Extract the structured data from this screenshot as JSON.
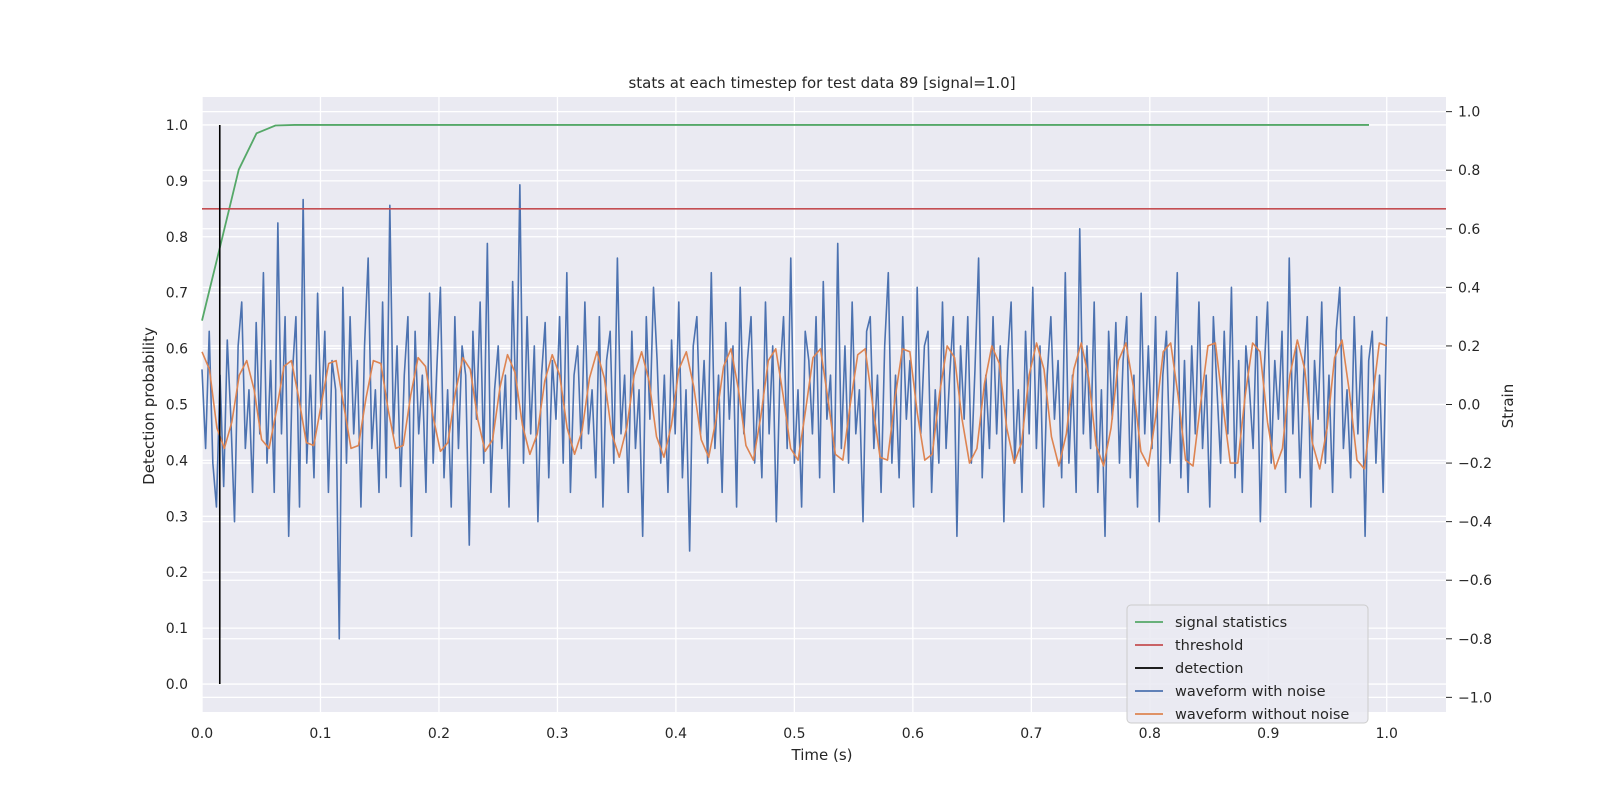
{
  "chart_data": {
    "type": "line",
    "title": "stats at each timestep for test data 89 [signal=1.0]",
    "xlabel": "Time (s)",
    "ylabel": "Detection probability",
    "y2label": "Strain",
    "xlim": [
      0.0,
      1.05
    ],
    "ylim": [
      -0.05,
      1.05
    ],
    "y2lim": [
      -1.05,
      1.05
    ],
    "xticks": [
      "0.0",
      "0.1",
      "0.2",
      "0.3",
      "0.4",
      "0.5",
      "0.6",
      "0.7",
      "0.8",
      "0.9",
      "1.0"
    ],
    "yticks": [
      "0.0",
      "0.1",
      "0.2",
      "0.3",
      "0.4",
      "0.5",
      "0.6",
      "0.7",
      "0.8",
      "0.9",
      "1.0"
    ],
    "y2ticks": [
      "−1.0",
      "−0.8",
      "−0.6",
      "−0.4",
      "−0.2",
      "0.0",
      "0.2",
      "0.4",
      "0.6",
      "0.8",
      "1.0"
    ],
    "grid": true,
    "legend_position": "lower right",
    "colors": {
      "signal_statistics": "#55a868",
      "threshold": "#c44e52",
      "detection": "#000000",
      "waveform_with_noise": "#4c72b0",
      "waveform_without_noise": "#dd8452",
      "background": "#eaeaf2",
      "grid": "#ffffff"
    },
    "legend": [
      "signal statistics",
      "threshold",
      "detection",
      "waveform with noise",
      "waveform without noise"
    ],
    "series": [
      {
        "name": "signal statistics",
        "axis": "left",
        "x": [
          0.0,
          0.015,
          0.031,
          0.046,
          0.062,
          0.078,
          0.2,
          0.4,
          0.6,
          0.8,
          0.985
        ],
        "values": [
          0.65,
          0.78,
          0.92,
          0.985,
          0.999,
          1.0,
          1.0,
          1.0,
          1.0,
          1.0,
          1.0
        ]
      },
      {
        "name": "threshold",
        "axis": "left",
        "x": [
          0.0,
          1.05
        ],
        "values": [
          0.85,
          0.85
        ]
      },
      {
        "name": "detection",
        "axis": "left",
        "x": [
          0.015,
          0.015
        ],
        "values": [
          0.0,
          1.0
        ]
      },
      {
        "name": "waveform with noise",
        "axis": "right",
        "x_start": 0.0,
        "x_end": 1.0,
        "values": [
          0.12,
          -0.15,
          0.25,
          -0.2,
          -0.35,
          0.1,
          -0.28,
          0.22,
          -0.05,
          -0.4,
          0.2,
          0.35,
          -0.15,
          0.05,
          -0.3,
          0.28,
          -0.1,
          0.45,
          -0.2,
          0.15,
          -0.3,
          0.62,
          -0.1,
          0.3,
          -0.45,
          0.1,
          0.3,
          -0.35,
          0.7,
          -0.2,
          0.1,
          -0.25,
          0.38,
          -0.05,
          0.25,
          -0.3,
          0.15,
          0.05,
          -0.8,
          0.4,
          -0.2,
          0.3,
          -0.1,
          0.15,
          -0.35,
          0.2,
          0.5,
          -0.15,
          0.05,
          -0.3,
          0.35,
          -0.25,
          0.68,
          -0.1,
          0.2,
          -0.28,
          0.1,
          0.3,
          -0.45,
          0.25,
          -0.1,
          0.1,
          -0.3,
          0.38,
          -0.2,
          0.12,
          0.4,
          -0.25,
          0.05,
          -0.35,
          0.3,
          -0.15,
          0.2,
          0.1,
          -0.48,
          0.25,
          -0.05,
          0.35,
          -0.2,
          0.55,
          -0.3,
          0.05,
          0.2,
          -0.15,
          0.1,
          -0.35,
          0.42,
          -0.05,
          0.75,
          -0.2,
          0.3,
          -0.1,
          0.2,
          -0.4,
          0.1,
          0.28,
          -0.25,
          0.15,
          -0.05,
          0.3,
          -0.2,
          0.45,
          -0.3,
          0.1,
          0.2,
          -0.15,
          0.35,
          -0.1,
          0.05,
          -0.25,
          0.3,
          -0.35,
          0.15,
          0.25,
          -0.2,
          0.5,
          -0.1,
          0.1,
          -0.3,
          0.25,
          -0.15,
          0.05,
          -0.45,
          0.3,
          -0.05,
          0.4,
          0.15,
          -0.2,
          0.1,
          -0.3,
          0.22,
          -0.1,
          0.35,
          -0.25,
          0.05,
          -0.5,
          0.2,
          0.3,
          -0.1,
          0.15,
          -0.2,
          0.45,
          -0.15,
          0.1,
          -0.3,
          0.28,
          -0.05,
          0.2,
          -0.35,
          0.4,
          -0.1,
          0.15,
          0.3,
          -0.2,
          0.05,
          -0.25,
          0.35,
          -0.1,
          0.2,
          -0.4,
          0.1,
          0.3,
          -0.15,
          0.5,
          -0.2,
          0.05,
          -0.35,
          0.25,
          0.15,
          -0.1,
          0.3,
          -0.25,
          0.42,
          -0.05,
          0.1,
          -0.3,
          0.55,
          -0.15,
          0.2,
          -0.2,
          0.35,
          -0.1,
          0.05,
          -0.4,
          0.25,
          0.3,
          -0.15,
          0.1,
          -0.3,
          0.2,
          0.45,
          -0.2,
          0.1,
          -0.25,
          0.3,
          -0.05,
          0.15,
          -0.35,
          0.4,
          -0.1,
          0.2,
          0.25,
          -0.3,
          0.05,
          -0.2,
          0.35,
          -0.15,
          0.1,
          0.3,
          -0.45,
          0.2,
          -0.05,
          0.3,
          -0.2,
          0.12,
          0.5,
          -0.25,
          0.1,
          -0.15,
          0.3,
          -0.1,
          0.2,
          -0.4,
          0.15,
          0.35,
          -0.2,
          0.05,
          -0.3,
          0.25,
          -0.1,
          0.4,
          -0.15,
          0.2,
          -0.35,
          0.1,
          0.3,
          -0.05,
          0.15,
          -0.25,
          0.45,
          -0.2,
          0.1,
          -0.3,
          0.6,
          -0.1,
          0.2,
          -0.15,
          0.35,
          -0.3,
          0.05,
          -0.45,
          0.25,
          -0.05,
          0.28,
          -0.2,
          0.15,
          0.3,
          -0.25,
          0.1,
          -0.35,
          0.38,
          -0.1,
          0.2,
          -0.15,
          0.3,
          -0.4,
          0.1,
          0.25,
          -0.2,
          0.05,
          0.45,
          -0.25,
          0.15,
          -0.3,
          0.2,
          -0.1,
          0.35,
          -0.15,
          0.1,
          -0.35,
          0.3,
          0.05,
          -0.2,
          0.25,
          -0.1,
          0.4,
          -0.25,
          0.15,
          -0.3,
          0.2,
          0.05,
          -0.15,
          0.3,
          -0.4,
          0.1,
          0.35,
          -0.2,
          0.15,
          -0.05,
          0.25,
          -0.3,
          0.5,
          -0.1,
          0.2,
          -0.25,
          0.1,
          0.3,
          -0.35,
          0.15,
          -0.05,
          0.35,
          -0.2,
          0.1,
          -0.3,
          0.25,
          0.4,
          -0.15,
          0.05,
          -0.25,
          0.3,
          -0.1,
          0.2,
          -0.45,
          0.15,
          0.25,
          -0.2,
          0.1,
          -0.3,
          0.3
        ]
      },
      {
        "name": "waveform without noise",
        "axis": "right",
        "x_start": 0.0,
        "x_end": 1.0,
        "values": [
          0.18,
          0.12,
          -0.08,
          -0.15,
          -0.06,
          0.1,
          0.15,
          0.05,
          -0.12,
          -0.15,
          -0.02,
          0.13,
          0.15,
          0.02,
          -0.13,
          -0.14,
          0.0,
          0.14,
          0.15,
          0.0,
          -0.15,
          -0.14,
          0.02,
          0.15,
          0.14,
          -0.02,
          -0.15,
          -0.14,
          0.03,
          0.16,
          0.13,
          -0.04,
          -0.16,
          -0.13,
          0.04,
          0.16,
          0.12,
          -0.05,
          -0.16,
          -0.12,
          0.06,
          0.17,
          0.11,
          -0.07,
          -0.17,
          -0.1,
          0.08,
          0.17,
          0.1,
          -0.08,
          -0.17,
          -0.09,
          0.09,
          0.18,
          0.09,
          -0.1,
          -0.18,
          -0.08,
          0.1,
          0.18,
          0.08,
          -0.11,
          -0.18,
          -0.07,
          0.12,
          0.18,
          0.06,
          -0.12,
          -0.18,
          -0.05,
          0.13,
          0.19,
          0.05,
          -0.14,
          -0.19,
          -0.04,
          0.15,
          0.19,
          0.03,
          -0.15,
          -0.19,
          -0.02,
          0.16,
          0.19,
          0.02,
          -0.17,
          -0.19,
          0.0,
          0.17,
          0.19,
          0.0,
          -0.18,
          -0.19,
          0.02,
          0.19,
          0.18,
          -0.03,
          -0.19,
          -0.17,
          0.04,
          0.2,
          0.16,
          -0.05,
          -0.2,
          -0.15,
          0.07,
          0.2,
          0.14,
          -0.08,
          -0.2,
          -0.13,
          0.1,
          0.21,
          0.12,
          -0.11,
          -0.21,
          -0.1,
          0.12,
          0.21,
          0.09,
          -0.14,
          -0.21,
          -0.08,
          0.15,
          0.21,
          0.06,
          -0.16,
          -0.21,
          -0.04,
          0.18,
          0.21,
          0.03,
          -0.19,
          -0.21,
          0.0,
          0.2,
          0.21,
          0.0,
          -0.2,
          -0.2,
          0.03,
          0.21,
          0.18,
          -0.06,
          -0.22,
          -0.15,
          0.1,
          0.22,
          0.12,
          -0.13,
          -0.22,
          -0.08,
          0.16,
          0.22,
          0.04,
          -0.19,
          -0.22,
          0.0,
          0.21,
          0.2
        ]
      }
    ]
  }
}
